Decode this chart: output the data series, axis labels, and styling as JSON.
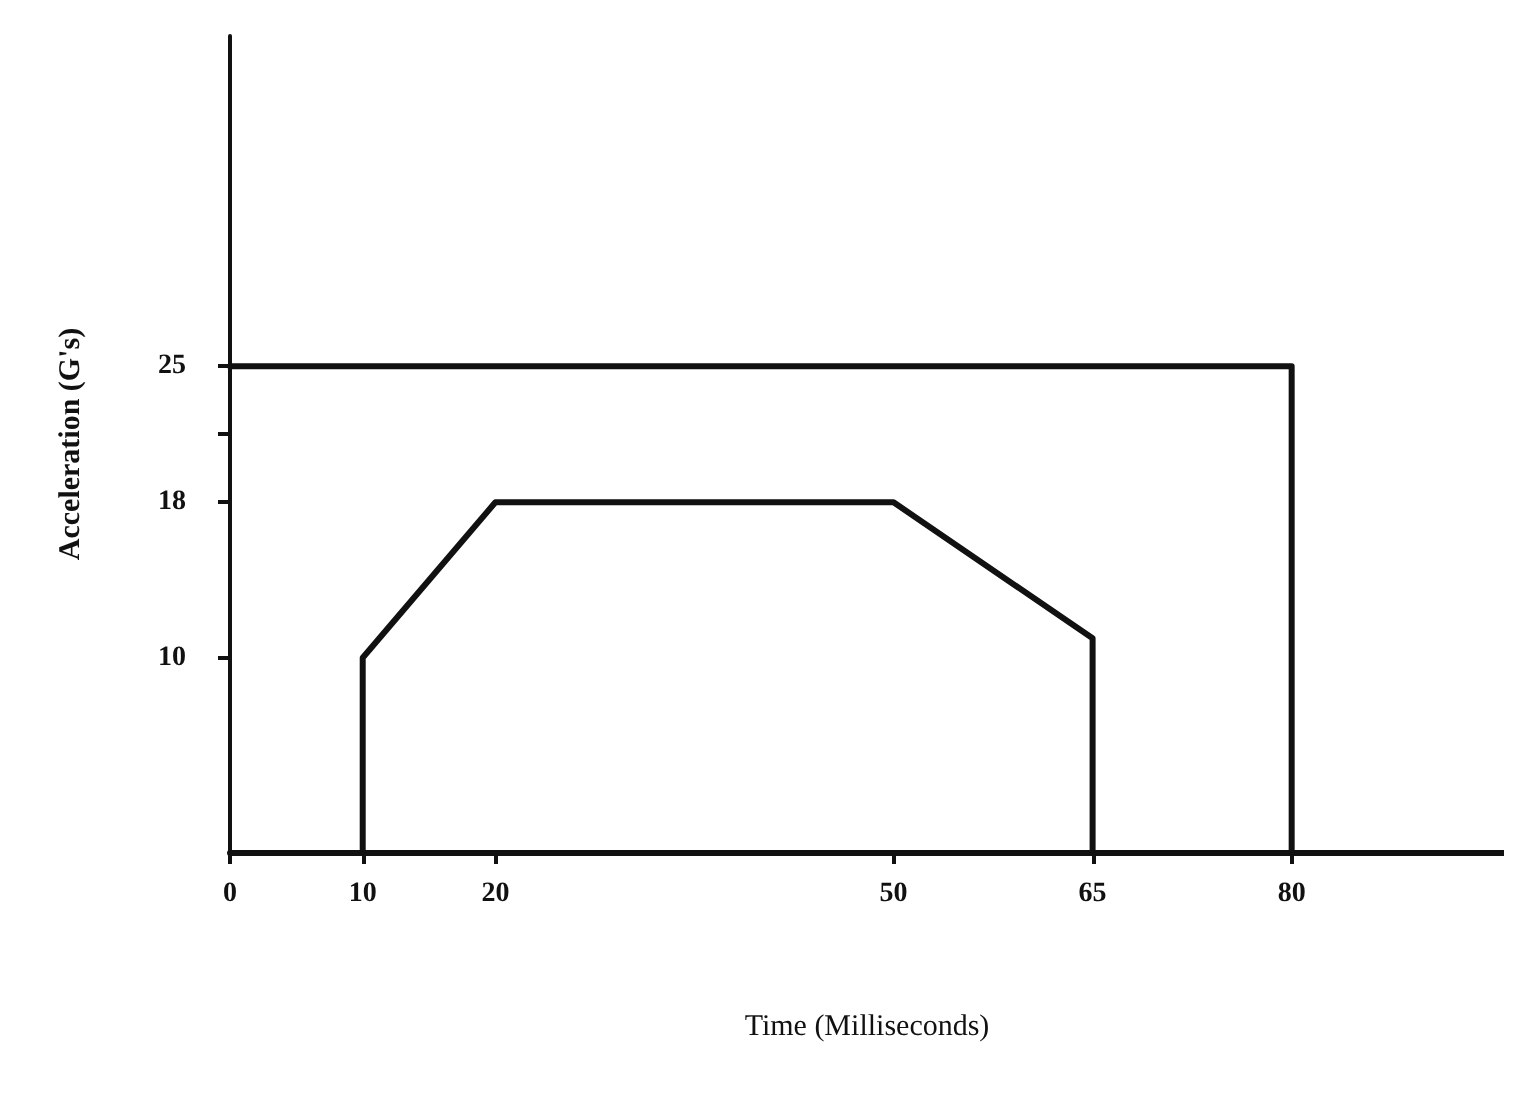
{
  "chart_data": {
    "type": "line",
    "xlabel": "Time (Milliseconds)",
    "ylabel": "Acceleration (G's)",
    "series": [
      {
        "color": "#111111",
        "x": [
          0,
          80,
          80
        ],
        "values": [
          25,
          25,
          0
        ]
      },
      {
        "color": "#111111",
        "x": [
          10,
          10,
          20,
          50,
          65,
          65
        ],
        "values": [
          0,
          10,
          18,
          18,
          11,
          0
        ]
      }
    ],
    "xlim": [
      0,
      96
    ],
    "xticks": [
      0,
      10,
      20,
      50,
      65,
      80
    ],
    "ylim": [
      0,
      42
    ],
    "yticks": [
      10,
      18,
      {
        "value": 21.5,
        "label": null
      },
      25
    ],
    "grid": false,
    "marker": "none",
    "line_style": "solid"
  }
}
